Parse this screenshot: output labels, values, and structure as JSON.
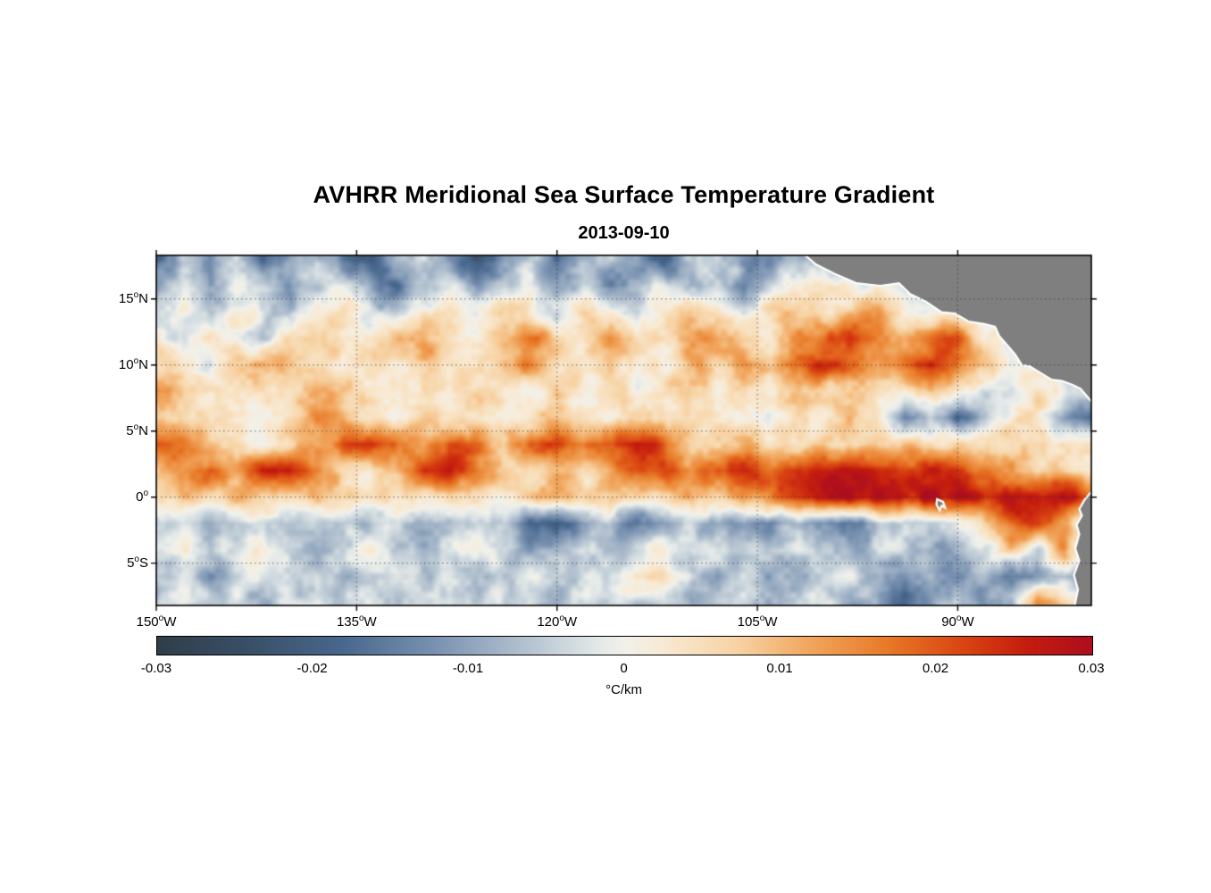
{
  "page": {
    "background": "#ffffff"
  },
  "chart_data": {
    "type": "heatmap",
    "title": "AVHRR Meridional Sea Surface Temperature Gradient",
    "date": "2013-09-10",
    "projection": "lat-lon",
    "lon_range": [
      -150,
      -80
    ],
    "lat_range": [
      -8.2,
      18.3
    ],
    "grid_on": true,
    "x_ticks": [
      {
        "lon": -150,
        "label": "150°W"
      },
      {
        "lon": -135,
        "label": "135°W"
      },
      {
        "lon": -120,
        "label": "120°W"
      },
      {
        "lon": -105,
        "label": "105°W"
      },
      {
        "lon": -90,
        "label": "90°W"
      }
    ],
    "y_ticks": [
      {
        "lat": 15,
        "label": "15°N"
      },
      {
        "lat": 10,
        "label": "10°N"
      },
      {
        "lat": 5,
        "label": "5°N"
      },
      {
        "lat": 0,
        "label": "0°"
      },
      {
        "lat": -5,
        "label": "5°S"
      }
    ],
    "colorbar": {
      "min": -0.03,
      "max": 0.03,
      "tick_labels": [
        "-0.03",
        "-0.02",
        "-0.01",
        "0",
        "0.01",
        "0.02",
        "0.03"
      ],
      "units": "°C/km",
      "colormap": [
        {
          "t": 0.0,
          "c": "#2f3e49"
        },
        {
          "t": 0.1,
          "c": "#3a5068"
        },
        {
          "t": 0.2,
          "c": "#49688e"
        },
        {
          "t": 0.3,
          "c": "#7b93b2"
        },
        {
          "t": 0.4,
          "c": "#b7c5d2"
        },
        {
          "t": 0.47,
          "c": "#e2e8e8"
        },
        {
          "t": 0.5,
          "c": "#f2f1ea"
        },
        {
          "t": 0.54,
          "c": "#f8ead4"
        },
        {
          "t": 0.62,
          "c": "#f7d3a4"
        },
        {
          "t": 0.7,
          "c": "#f1a55c"
        },
        {
          "t": 0.78,
          "c": "#e87a28"
        },
        {
          "t": 0.86,
          "c": "#da4612"
        },
        {
          "t": 0.93,
          "c": "#c41d0e"
        },
        {
          "t": 1.0,
          "c": "#ad0e1f"
        }
      ]
    },
    "land": {
      "fill": "#7f7f7f",
      "coastline": "#ffffff",
      "polygons": {
        "central_america": [
          [
            -102.0,
            18.8
          ],
          [
            -100.6,
            17.6
          ],
          [
            -99.2,
            16.9
          ],
          [
            -97.6,
            16.2
          ],
          [
            -95.8,
            16.0
          ],
          [
            -94.4,
            16.2
          ],
          [
            -93.6,
            15.4
          ],
          [
            -92.4,
            14.8
          ],
          [
            -91.2,
            14.0
          ],
          [
            -90.2,
            13.9
          ],
          [
            -89.2,
            13.3
          ],
          [
            -88.0,
            13.1
          ],
          [
            -87.2,
            12.9
          ],
          [
            -86.9,
            12.2
          ],
          [
            -86.3,
            11.5
          ],
          [
            -85.7,
            10.8
          ],
          [
            -85.2,
            10.0
          ],
          [
            -84.6,
            9.9
          ],
          [
            -83.8,
            9.4
          ],
          [
            -83.0,
            8.9
          ],
          [
            -82.2,
            8.8
          ],
          [
            -81.4,
            8.5
          ],
          [
            -80.8,
            8.2
          ],
          [
            -80.3,
            7.6
          ],
          [
            -79.8,
            7.0
          ],
          [
            -79.0,
            6.8
          ],
          [
            -79.0,
            19.0
          ],
          [
            -102.0,
            19.0
          ]
        ],
        "south_america": [
          [
            -79.0,
            0.9
          ],
          [
            -80.1,
            0.3
          ],
          [
            -80.5,
            -0.2
          ],
          [
            -80.9,
            -0.9
          ],
          [
            -80.7,
            -1.4
          ],
          [
            -81.1,
            -2.1
          ],
          [
            -80.9,
            -2.8
          ],
          [
            -81.2,
            -3.9
          ],
          [
            -80.9,
            -4.8
          ],
          [
            -81.3,
            -5.9
          ],
          [
            -81.0,
            -7.0
          ],
          [
            -81.3,
            -8.5
          ],
          [
            -79.0,
            -8.5
          ]
        ],
        "galapagos": [
          [
            -91.55,
            -0.15
          ],
          [
            -91.1,
            -0.35
          ],
          [
            -90.95,
            -0.8
          ],
          [
            -91.2,
            -0.65
          ],
          [
            -91.35,
            -1.0
          ],
          [
            -91.6,
            -0.55
          ]
        ]
      }
    },
    "grid": {
      "description": "Coarse estimate of meridional SST gradient field read from the map, value_scale converts to °C/km",
      "value_scale": 0.001,
      "lats": [
        18,
        16,
        14,
        12,
        10,
        8,
        6,
        4,
        2,
        0,
        -2,
        -4,
        -6,
        -8
      ],
      "lons": [
        -150,
        -148,
        -146,
        -144,
        -142,
        -140,
        -138,
        -136,
        -134,
        -132,
        -130,
        -128,
        -126,
        -124,
        -122,
        -120,
        -118,
        -116,
        -114,
        -112,
        -110,
        -108,
        -106,
        -104,
        -102,
        -100,
        -98,
        -96,
        -94,
        -92,
        -90,
        -88,
        -86,
        -84,
        -82,
        -80
      ],
      "values": [
        [
          -18,
          -6,
          -14,
          -3,
          -19,
          -8,
          -4,
          -16,
          -22,
          -9,
          -3,
          -15,
          -24,
          -10,
          -4,
          -18,
          -7,
          -3,
          -12,
          -20,
          -6,
          -2,
          -10,
          -16,
          -5,
          -8,
          -14,
          0,
          0,
          0,
          0,
          0,
          0,
          0,
          0,
          0
        ],
        [
          -8,
          -3,
          -12,
          -2,
          -6,
          -14,
          -4,
          -2,
          -10,
          -16,
          -5,
          -2,
          -12,
          -6,
          -2,
          -10,
          -4,
          -14,
          -7,
          -2,
          -9,
          -4,
          -12,
          -3,
          2,
          5,
          0,
          0,
          0,
          0,
          0,
          0,
          0,
          0,
          0,
          0
        ],
        [
          -4,
          2,
          -6,
          3,
          -2,
          -8,
          2,
          4,
          -3,
          -6,
          2,
          5,
          -2,
          8,
          3,
          -4,
          6,
          2,
          -5,
          3,
          8,
          4,
          -2,
          6,
          10,
          4,
          8,
          12,
          0,
          0,
          0,
          0,
          0,
          0,
          0,
          0
        ],
        [
          2,
          -4,
          6,
          3,
          -5,
          4,
          10,
          5,
          2,
          8,
          14,
          6,
          3,
          12,
          18,
          8,
          4,
          14,
          6,
          3,
          10,
          16,
          8,
          4,
          12,
          18,
          22,
          14,
          8,
          16,
          20,
          0,
          0,
          0,
          0,
          0
        ],
        [
          6,
          3,
          -3,
          5,
          12,
          8,
          4,
          2,
          6,
          3,
          8,
          4,
          2,
          10,
          15,
          6,
          3,
          8,
          4,
          2,
          12,
          6,
          16,
          8,
          20,
          24,
          18,
          12,
          20,
          24,
          18,
          10,
          0,
          0,
          0,
          0
        ],
        [
          16,
          8,
          4,
          2,
          6,
          3,
          14,
          8,
          4,
          2,
          5,
          3,
          8,
          4,
          2,
          6,
          3,
          5,
          2,
          4,
          8,
          3,
          6,
          2,
          8,
          4,
          10,
          6,
          3,
          8,
          4,
          -6,
          -3,
          5,
          0,
          0
        ],
        [
          10,
          5,
          2,
          4,
          2,
          8,
          15,
          10,
          4,
          2,
          6,
          3,
          2,
          5,
          3,
          8,
          4,
          2,
          5,
          3,
          2,
          6,
          3,
          2,
          5,
          3,
          8,
          4,
          -12,
          -6,
          -16,
          -8,
          3,
          6,
          -10,
          -18
        ],
        [
          22,
          18,
          8,
          4,
          2,
          6,
          12,
          20,
          24,
          18,
          10,
          22,
          16,
          6,
          20,
          24,
          14,
          22,
          26,
          18,
          8,
          4,
          10,
          6,
          3,
          8,
          4,
          6,
          10,
          5,
          8,
          4,
          6,
          3,
          5,
          2
        ],
        [
          8,
          14,
          20,
          10,
          24,
          28,
          18,
          8,
          4,
          10,
          22,
          26,
          16,
          8,
          4,
          12,
          6,
          10,
          18,
          22,
          16,
          20,
          24,
          18,
          22,
          26,
          28,
          24,
          20,
          26,
          22,
          18,
          12,
          8,
          6,
          4
        ],
        [
          4,
          8,
          5,
          10,
          6,
          4,
          8,
          5,
          3,
          6,
          4,
          8,
          5,
          3,
          8,
          10,
          5,
          8,
          4,
          6,
          10,
          8,
          14,
          18,
          24,
          28,
          30,
          28,
          26,
          30,
          28,
          24,
          30,
          28,
          30,
          20
        ],
        [
          -6,
          -3,
          -8,
          -4,
          -2,
          -6,
          -3,
          -8,
          -5,
          -3,
          -10,
          -6,
          -3,
          -8,
          -18,
          -22,
          -12,
          -6,
          -16,
          -10,
          -5,
          -12,
          -8,
          -14,
          -6,
          -12,
          -16,
          -8,
          -4,
          -6,
          -3,
          8,
          18,
          24,
          12,
          -8
        ],
        [
          -3,
          2,
          -6,
          -2,
          3,
          -5,
          -8,
          -3,
          2,
          -4,
          -8,
          -3,
          2,
          -5,
          -10,
          -6,
          -2,
          -8,
          -4,
          2,
          -6,
          -3,
          -8,
          -4,
          -2,
          -6,
          -10,
          -5,
          -3,
          -12,
          -6,
          -3,
          8,
          -6,
          14,
          -4
        ],
        [
          -8,
          -4,
          -10,
          -5,
          -2,
          -6,
          -3,
          -9,
          -5,
          -2,
          -7,
          -3,
          -10,
          -5,
          -2,
          -8,
          -4,
          -2,
          6,
          3,
          -5,
          -10,
          -4,
          -8,
          -12,
          -6,
          -3,
          -8,
          -12,
          -6,
          -14,
          -8,
          -16,
          -10,
          -6,
          -12
        ],
        [
          -4,
          -2,
          -6,
          -3,
          -8,
          -4,
          -2,
          -5,
          -3,
          -7,
          -4,
          -2,
          -6,
          -3,
          -5,
          -8,
          -4,
          -2,
          -6,
          -3,
          -10,
          -5,
          -3,
          -8,
          -4,
          -2,
          -12,
          -6,
          -18,
          -10,
          -5,
          -14,
          -8,
          12,
          6,
          -4
        ]
      ]
    }
  }
}
